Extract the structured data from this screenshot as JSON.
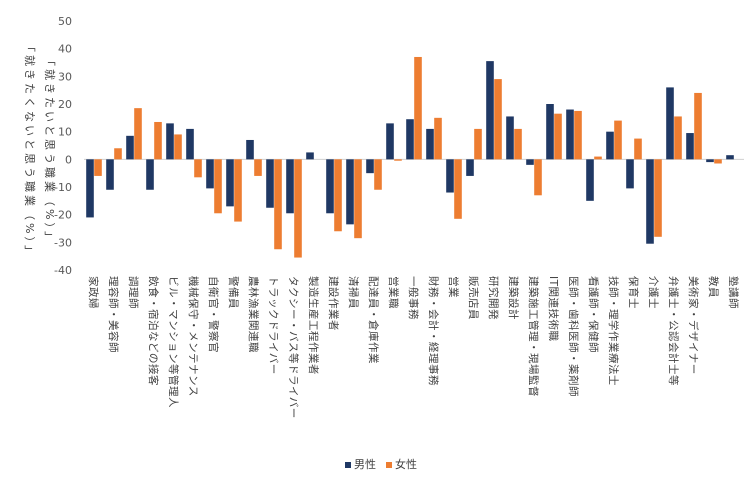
{
  "chart_data": {
    "type": "bar",
    "title": "",
    "ylabel_primary": "「就きたいと思う職業（%）」",
    "ylabel_secondary": "「就きたくないと思う職業（%）」",
    "ylim": [
      -40,
      50
    ],
    "yticks": [
      50,
      40,
      30,
      20,
      10,
      0,
      -10,
      -20,
      -30,
      -40
    ],
    "categories": [
      "家政婦",
      "理容師・美容師",
      "調理師",
      "飲食・宿泊などの接客",
      "ビル・マンション等管理人",
      "機械保守・メンテナンス",
      "自衛官・警察官",
      "警備員",
      "農林漁業関連職",
      "トラックドライバー",
      "タクシー・バス等ドライバー",
      "製造生産工程作業者",
      "建設作業者",
      "清掃員",
      "配達員・倉庫作業",
      "営業職",
      "一般事務",
      "財務・会計・経理事務",
      "営業",
      "販売店員",
      "研究開発",
      "建築設計",
      "建築施工管理・現場監督",
      "IT関連技術職",
      "医師・歯科医師・薬剤師",
      "看護師・保健師",
      "技師・理学作業療法士",
      "保育士",
      "介護士",
      "弁護士・公認会計士等",
      "美術家・デザイナー",
      "教員",
      "塾講師"
    ],
    "series": [
      {
        "name": "男性",
        "color": "#1f3864",
        "values": [
          -21,
          -11,
          8.5,
          -11,
          13,
          11,
          -10.5,
          -17,
          7,
          -17.5,
          -19.5,
          2.5,
          -19.5,
          -23.5,
          -5,
          13,
          14.5,
          11,
          -12,
          -6,
          35.5,
          15.5,
          -2,
          20,
          18,
          -15,
          10,
          -10.5,
          -30.5,
          26,
          9.5,
          -1,
          1.5
        ]
      },
      {
        "name": "女性",
        "color": "#ed7d31",
        "values": [
          -6,
          4,
          18.5,
          13.5,
          9,
          -6.5,
          -19.5,
          -22.5,
          -6,
          -32.5,
          -35.5,
          0,
          -26,
          -28.5,
          -11,
          -0.5,
          37,
          15,
          -21.5,
          11,
          29,
          11,
          -13,
          16.5,
          17.5,
          1,
          14,
          7.5,
          -28,
          15.5,
          24,
          -1.5,
          0
        ]
      }
    ],
    "legend": [
      "男性",
      "女性"
    ],
    "legend_position": "bottom",
    "grid": false
  }
}
